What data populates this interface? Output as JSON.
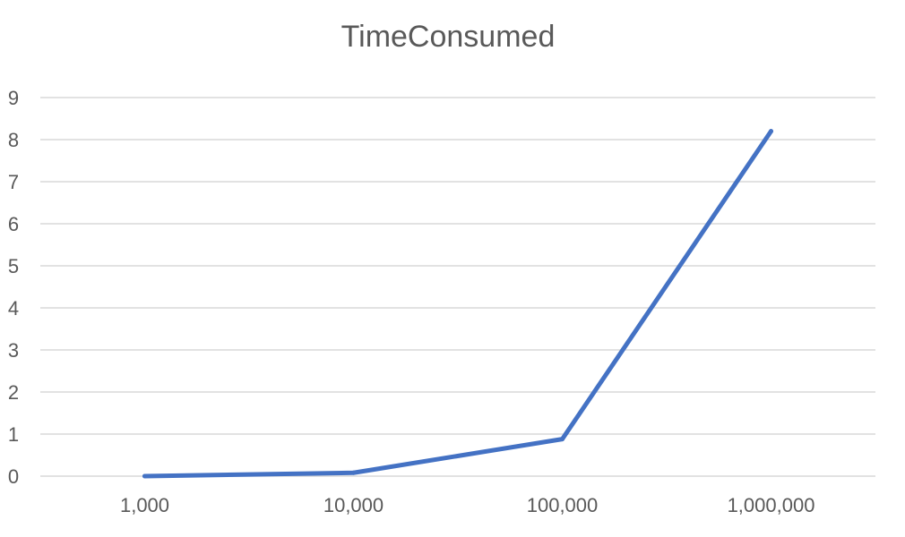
{
  "chart_data": {
    "type": "line",
    "title": "TimeConsumed",
    "categories": [
      "1,000",
      "10,000",
      "100,000",
      "1,000,000"
    ],
    "series": [
      {
        "values": [
          0.0,
          0.08,
          0.88,
          8.2
        ]
      }
    ],
    "ylim": [
      0,
      9
    ],
    "yticks": [
      0,
      1,
      2,
      3,
      4,
      5,
      6,
      7,
      8,
      9
    ],
    "xlabel": "",
    "ylabel": "",
    "grid": true,
    "legend": "none",
    "colors": {
      "series": "#4472c4",
      "grid": "#d9d9d9",
      "text": "#595959"
    }
  }
}
